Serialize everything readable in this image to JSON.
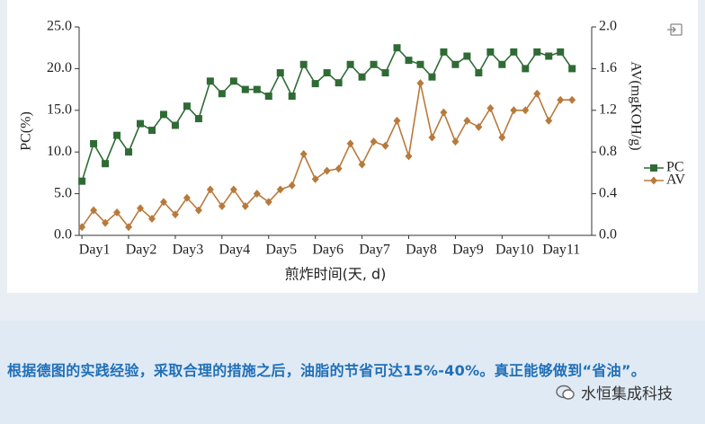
{
  "chart_data": {
    "type": "line",
    "ylabel": "PC(%)",
    "y2label": "AV(mgKOH/g)",
    "xlabel": "煎炸时间(天, d)",
    "x": [
      1,
      1.25,
      1.5,
      1.75,
      2,
      2.25,
      2.5,
      2.75,
      3,
      3.25,
      3.5,
      3.75,
      4,
      4.25,
      4.5,
      4.75,
      5,
      5.25,
      5.5,
      5.75,
      6,
      6.25,
      6.5,
      6.75,
      7,
      7.25,
      7.5,
      7.75,
      8,
      8.25,
      8.5,
      8.75,
      9,
      9.25,
      9.5,
      9.75,
      10,
      10.25,
      10.5,
      10.75,
      11,
      11.25,
      11.5
    ],
    "xlim": [
      0.94,
      11.92
    ],
    "xticks": [
      {
        "value": 1,
        "label": "Day1"
      },
      {
        "value": 2,
        "label": "Day2"
      },
      {
        "value": 3,
        "label": "Day3"
      },
      {
        "value": 4,
        "label": "Day4"
      },
      {
        "value": 5,
        "label": "Day5"
      },
      {
        "value": 6,
        "label": "Day6"
      },
      {
        "value": 7,
        "label": "Day7"
      },
      {
        "value": 8,
        "label": "Day8"
      },
      {
        "value": 9,
        "label": "Day9"
      },
      {
        "value": 10,
        "label": "Day10"
      },
      {
        "value": 11,
        "label": "Day11"
      }
    ],
    "ylim": [
      0,
      25
    ],
    "yticks": [
      {
        "value": 0,
        "label": "0.0"
      },
      {
        "value": 5,
        "label": "5.0"
      },
      {
        "value": 10,
        "label": "10.0"
      },
      {
        "value": 15,
        "label": "15.0"
      },
      {
        "value": 20,
        "label": "20.0"
      },
      {
        "value": 25,
        "label": "25.0"
      }
    ],
    "y2lim": [
      0,
      2
    ],
    "y2ticks": [
      {
        "value": 0,
        "label": "0.0"
      },
      0.4,
      0.8,
      1.2,
      1.6,
      {
        "value": 2,
        "label": "2.0"
      }
    ],
    "series": [
      {
        "name": "PC",
        "color": "#2f6b35",
        "marker": "square",
        "values": [
          6.5,
          11.0,
          8.6,
          12.0,
          10.0,
          13.4,
          12.6,
          14.5,
          13.2,
          15.5,
          14.0,
          18.5,
          17.0,
          18.5,
          17.5,
          17.5,
          16.7,
          19.5,
          16.7,
          20.5,
          18.2,
          19.5,
          18.3,
          20.5,
          19.0,
          20.5,
          19.5,
          22.5,
          21.0,
          20.5,
          19.0,
          22.0,
          20.5,
          21.5,
          19.5,
          22.0,
          20.5,
          22.0,
          20.0,
          22.0,
          21.5,
          22.0,
          20.0
        ]
      },
      {
        "name": "AV",
        "color": "#b87a3c",
        "marker": "diamond",
        "axis": "y2",
        "values": [
          0.08,
          0.24,
          0.12,
          0.22,
          0.08,
          0.26,
          0.16,
          0.32,
          0.2,
          0.36,
          0.24,
          0.44,
          0.28,
          0.44,
          0.28,
          0.4,
          0.32,
          0.44,
          0.48,
          0.78,
          0.54,
          0.62,
          0.64,
          0.88,
          0.68,
          0.9,
          0.86,
          1.1,
          0.76,
          1.46,
          0.94,
          1.18,
          0.9,
          1.1,
          1.04,
          1.22,
          0.94,
          1.2,
          1.2,
          1.36,
          1.1,
          1.3,
          1.3
        ]
      }
    ],
    "legend": "right"
  },
  "caption": "根据德图的实践经验，采取合理的措施之后，油脂的节省可达15%-40%。真正能够做到“省油”。",
  "watermark": "水恒集成科技"
}
